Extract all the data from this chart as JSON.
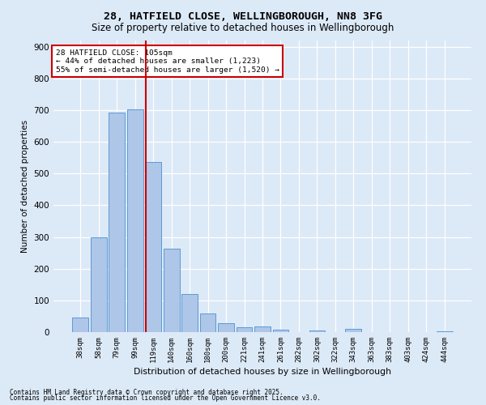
{
  "title1": "28, HATFIELD CLOSE, WELLINGBOROUGH, NN8 3FG",
  "title2": "Size of property relative to detached houses in Wellingborough",
  "xlabel": "Distribution of detached houses by size in Wellingborough",
  "ylabel": "Number of detached properties",
  "bar_labels": [
    "38sqm",
    "58sqm",
    "79sqm",
    "99sqm",
    "119sqm",
    "140sqm",
    "160sqm",
    "180sqm",
    "200sqm",
    "221sqm",
    "241sqm",
    "261sqm",
    "282sqm",
    "302sqm",
    "322sqm",
    "343sqm",
    "363sqm",
    "383sqm",
    "403sqm",
    "424sqm",
    "444sqm"
  ],
  "bar_values": [
    47,
    300,
    693,
    703,
    537,
    262,
    120,
    59,
    28,
    15,
    17,
    7,
    0,
    5,
    0,
    9,
    0,
    0,
    0,
    0,
    3
  ],
  "bar_color": "#aec6e8",
  "bar_edge_color": "#5b9bd5",
  "background_color": "#dce9f7",
  "grid_color": "#ffffff",
  "vline_x": 3.57,
  "vline_color": "#cc0000",
  "annotation_text": "28 HATFIELD CLOSE: 105sqm\n← 44% of detached houses are smaller (1,223)\n55% of semi-detached houses are larger (1,520) →",
  "annotation_box_color": "#ffffff",
  "annotation_box_edge": "#cc0000",
  "ylim": [
    0,
    920
  ],
  "yticks": [
    0,
    100,
    200,
    300,
    400,
    500,
    600,
    700,
    800,
    900
  ],
  "footer1": "Contains HM Land Registry data © Crown copyright and database right 2025.",
  "footer2": "Contains public sector information licensed under the Open Government Licence v3.0."
}
